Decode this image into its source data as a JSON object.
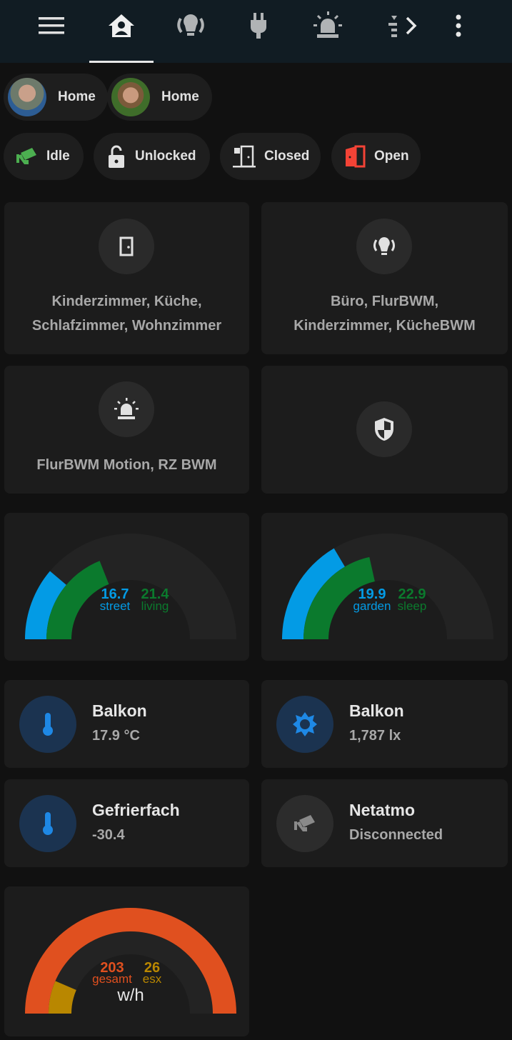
{
  "topbar": {
    "tabs": [
      "home",
      "lights",
      "plugs",
      "alarms",
      "more"
    ],
    "active_tab": "home"
  },
  "persons": [
    {
      "state": "Home"
    },
    {
      "state": "Home"
    }
  ],
  "badges": [
    {
      "icon": "cctv-icon",
      "label": "Idle",
      "color": "#4caf50"
    },
    {
      "icon": "lock-open-icon",
      "label": "Unlocked",
      "color": "#e1e1e1"
    },
    {
      "icon": "door-closed-lock-icon",
      "label": "Closed",
      "color": "#e1e1e1"
    },
    {
      "icon": "door-open-icon",
      "label": "Open",
      "color": "#f44336"
    }
  ],
  "area_cards": [
    {
      "icon": "door-icon",
      "text_line1": "Kinderzimmer, Küche,",
      "text_line2": "Schlafzimmer, Wohnzimmer"
    },
    {
      "icon": "lights-icon",
      "text_line1": "Büro, FlurBWM,",
      "text_line2": "Kinderzimmer, KücheBWM"
    },
    {
      "icon": "alarm-light-icon",
      "text_line1": "FlurBWM Motion, RZ BWM"
    },
    {
      "icon": "shield-icon"
    }
  ],
  "chart_data": [
    {
      "type": "gauge",
      "min": 10,
      "max": 40,
      "series": [
        {
          "name": "street",
          "value": 16.7,
          "color": "#039be5"
        },
        {
          "name": "living",
          "value": 21.4,
          "color": "#0b7a2d"
        }
      ]
    },
    {
      "type": "gauge",
      "min": 10,
      "max": 40,
      "series": [
        {
          "name": "garden",
          "value": 19.9,
          "color": "#039be5"
        },
        {
          "name": "sleep",
          "value": 22.9,
          "color": "#0b7a2d"
        }
      ]
    },
    {
      "type": "gauge",
      "min": 0,
      "max": 200,
      "unit": "w/h",
      "series": [
        {
          "name": "gesamt",
          "value": 203,
          "color": "#e0501f"
        },
        {
          "name": "esx",
          "value": 26,
          "color": "#b98700"
        }
      ]
    }
  ],
  "tiles": [
    {
      "icon": "thermometer-icon",
      "name": "Balkon",
      "value": "17.9 °C",
      "active": true
    },
    {
      "icon": "brightness-icon",
      "name": "Balkon",
      "value": "1,787 lx",
      "active": true
    },
    {
      "icon": "thermometer-icon",
      "name": "Gefrierfach",
      "value": "-30.4",
      "active": true
    },
    {
      "icon": "cctv-icon",
      "name": "Netatmo",
      "value": "Disconnected",
      "active": false
    }
  ],
  "colors": {
    "accent_blue": "#1e88e5",
    "tile_icon_bg": "#1b3350"
  }
}
